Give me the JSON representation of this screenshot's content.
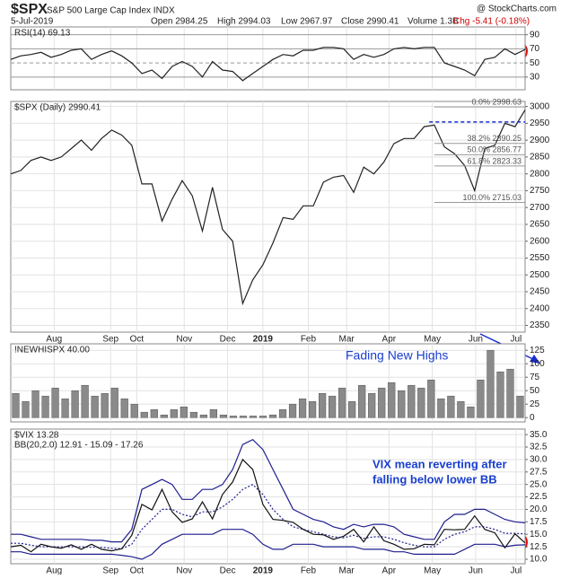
{
  "header": {
    "symbol": "$SPX",
    "name": "S&P 500 Large Cap Index INDX",
    "source": "@ StockCharts.com",
    "date": "5-Jul-2019",
    "quote": [
      "Open 2984.25",
      "High 2994.03",
      "Low 2967.97",
      "Close 2990.41",
      "Volume 1.3B",
      "Chg -5.41 (-0.18%)"
    ]
  },
  "chart_data": [
    {
      "type": "line",
      "title": "RSI(14) 69.13",
      "color": "#222222",
      "x": [
        0,
        1,
        2,
        3,
        4,
        5,
        6,
        7,
        8,
        9,
        10,
        11,
        12,
        13,
        14,
        15,
        16,
        17,
        18,
        19,
        20,
        21,
        22,
        23,
        24,
        25,
        26,
        27,
        28,
        29,
        30,
        31,
        32,
        33,
        34,
        35,
        36,
        37,
        38,
        39,
        40,
        41,
        42,
        43,
        44,
        45,
        46,
        47,
        48,
        49,
        50,
        51
      ],
      "values": [
        55,
        60,
        62,
        65,
        58,
        62,
        68,
        70,
        55,
        62,
        67,
        60,
        50,
        35,
        40,
        28,
        45,
        52,
        45,
        30,
        52,
        40,
        38,
        25,
        35,
        45,
        55,
        62,
        60,
        68,
        68,
        72,
        72,
        70,
        55,
        62,
        58,
        62,
        70,
        72,
        70,
        72,
        72,
        50,
        45,
        40,
        32,
        55,
        58,
        70,
        62,
        69.13
      ],
      "xlim": [
        0,
        51
      ],
      "ylim": [
        12,
        101
      ],
      "yticks": [
        30,
        50,
        70,
        90
      ]
    },
    {
      "type": "line",
      "title": "$SPX (Daily) 2990.41",
      "color": "#222222",
      "x": [
        0,
        1,
        2,
        3,
        4,
        5,
        6,
        7,
        8,
        9,
        10,
        11,
        12,
        13,
        14,
        15,
        16,
        17,
        18,
        19,
        20,
        21,
        22,
        23,
        24,
        25,
        26,
        27,
        28,
        29,
        30,
        31,
        32,
        33,
        34,
        35,
        36,
        37,
        38,
        39,
        40,
        41,
        42,
        43,
        44,
        45,
        46,
        47,
        48,
        49,
        50,
        51
      ],
      "values": [
        2800,
        2810,
        2840,
        2850,
        2840,
        2850,
        2875,
        2900,
        2870,
        2905,
        2930,
        2915,
        2885,
        2770,
        2770,
        2660,
        2725,
        2780,
        2735,
        2630,
        2760,
        2635,
        2600,
        2415,
        2485,
        2530,
        2595,
        2670,
        2665,
        2705,
        2705,
        2775,
        2790,
        2795,
        2745,
        2820,
        2800,
        2835,
        2890,
        2905,
        2905,
        2940,
        2945,
        2880,
        2860,
        2825,
        2750,
        2875,
        2885,
        2950,
        2940,
        2990
      ],
      "xlim": [
        0,
        51
      ],
      "ylim": [
        2330,
        3015
      ],
      "yticks": [
        2350,
        2400,
        2450,
        2500,
        2550,
        2600,
        2650,
        2700,
        2750,
        2800,
        2850,
        2900,
        2950,
        3000
      ],
      "xticks": [
        {
          "value": 4.3,
          "label": "Aug"
        },
        {
          "value": 9.9,
          "label": "Sep"
        },
        {
          "value": 12.5,
          "label": "Oct"
        },
        {
          "value": 17.2,
          "label": "Nov"
        },
        {
          "value": 21.5,
          "label": "Dec"
        },
        {
          "value": 25.0,
          "label": "2019"
        },
        {
          "value": 29.5,
          "label": "Feb"
        },
        {
          "value": 33.3,
          "label": "Mar"
        },
        {
          "value": 37.5,
          "label": "Apr"
        },
        {
          "value": 41.8,
          "label": "May"
        },
        {
          "value": 46.1,
          "label": "Jun"
        },
        {
          "value": 50.1,
          "label": "Jul"
        }
      ],
      "fib_levels": [
        {
          "value": 2998.63,
          "label": "0.0% 2998.63"
        },
        {
          "value": 2890.25,
          "label": "38.2% 2890.25"
        },
        {
          "value": 2856.77,
          "label": "50.0% 2856.77"
        },
        {
          "value": 2823.33,
          "label": "61.8% 2823.33"
        },
        {
          "value": 2715.03,
          "label": "100.0% 2715.03"
        }
      ],
      "resistance": 2954
    },
    {
      "type": "bar",
      "title": "!NEWHISPX 40.00",
      "color": "#8a8a8a",
      "x": [
        0,
        1,
        2,
        3,
        4,
        5,
        6,
        7,
        8,
        9,
        10,
        11,
        12,
        13,
        14,
        15,
        16,
        17,
        18,
        19,
        20,
        21,
        22,
        23,
        24,
        25,
        26,
        27,
        28,
        29,
        30,
        31,
        32,
        33,
        34,
        35,
        36,
        37,
        38,
        39,
        40,
        41,
        42,
        43,
        44,
        45,
        46,
        47,
        48,
        49,
        50,
        51
      ],
      "values": [
        45,
        30,
        50,
        40,
        55,
        35,
        50,
        60,
        40,
        45,
        55,
        35,
        25,
        10,
        15,
        5,
        15,
        20,
        10,
        5,
        15,
        5,
        3,
        3,
        3,
        3,
        5,
        15,
        25,
        35,
        30,
        45,
        40,
        55,
        30,
        60,
        45,
        55,
        65,
        50,
        60,
        55,
        70,
        35,
        40,
        30,
        20,
        70,
        125,
        85,
        90,
        40
      ],
      "xlim": [
        -0.5,
        51.5
      ],
      "ylim": [
        -8,
        137
      ],
      "yticks": [
        0,
        25,
        50,
        75,
        100,
        125
      ],
      "annotations": [
        "Fading New Highs"
      ]
    },
    {
      "type": "line",
      "title": "$VIX 13.28",
      "subtitle": "BB(20,2.0) 12.91 - 15.09 - 17.26",
      "color": "#111111",
      "band_color": "#1f1f8f",
      "x": [
        0,
        1,
        2,
        3,
        4,
        5,
        6,
        7,
        8,
        9,
        10,
        11,
        12,
        13,
        14,
        15,
        16,
        17,
        18,
        19,
        20,
        21,
        22,
        23,
        24,
        25,
        26,
        27,
        28,
        29,
        30,
        31,
        32,
        33,
        34,
        35,
        36,
        37,
        38,
        39,
        40,
        41,
        42,
        43,
        44,
        45,
        46,
        47,
        48,
        49,
        50,
        51
      ],
      "values": [
        12.5,
        12.8,
        11.5,
        13,
        12.5,
        12.2,
        12.9,
        12,
        13,
        12,
        11.7,
        12.1,
        14.8,
        21,
        19.9,
        24,
        19.5,
        17.4,
        18.1,
        21.5,
        18.1,
        23,
        25.5,
        30,
        28,
        21,
        18,
        17.8,
        17.4,
        16,
        15,
        14.9,
        14,
        14.6,
        16,
        13.5,
        16.5,
        13.7,
        13,
        12,
        12.1,
        13,
        12.9,
        16,
        15.9,
        16,
        18.7,
        16,
        15.3,
        12.3,
        15.1,
        13.28
      ],
      "bands": {
        "upper": [
          15,
          15,
          14.5,
          14,
          14,
          14,
          14,
          14,
          13.8,
          13.8,
          13.5,
          13.5,
          16,
          24,
          25,
          26,
          25,
          22,
          22,
          24,
          24,
          25,
          28,
          33,
          34,
          32,
          28,
          24,
          20,
          19,
          18,
          17.5,
          16.5,
          16,
          17,
          16.5,
          17,
          17,
          16.5,
          15,
          14.5,
          14,
          14,
          17.5,
          19,
          19,
          20,
          20,
          19,
          18,
          17.5,
          17.3
        ],
        "middle": [
          13.2,
          13.2,
          12.8,
          12.5,
          12.5,
          12.5,
          12.5,
          12.5,
          12.4,
          12.4,
          12.2,
          12.1,
          13,
          16,
          18,
          20,
          20,
          19,
          18.5,
          19.5,
          19.5,
          20.5,
          22,
          24,
          25,
          23,
          20,
          18,
          16.5,
          16,
          15.5,
          15,
          14.5,
          14.3,
          14.8,
          14.2,
          14.5,
          14.5,
          14,
          13.3,
          12.8,
          12.5,
          12.5,
          14,
          15,
          15.5,
          16.5,
          16.5,
          16,
          15.2,
          15.2,
          15.1
        ],
        "lower": [
          11.5,
          11.5,
          11,
          11,
          11,
          11,
          11,
          11,
          11,
          11,
          11,
          10.8,
          10.5,
          10,
          11,
          13,
          14,
          15,
          15,
          15,
          15,
          16,
          16,
          16,
          15,
          13,
          12,
          12,
          13,
          13,
          13,
          12.5,
          12.5,
          12.5,
          12.5,
          12,
          12,
          12,
          11.5,
          11.5,
          11,
          11,
          11,
          11,
          11,
          12,
          13,
          13,
          13,
          12.5,
          12.8,
          12.9
        ]
      },
      "xlim": [
        0,
        51
      ],
      "ylim": [
        9.1,
        36.1
      ],
      "yticks": [
        {
          "value": 10,
          "label": "10.0"
        },
        {
          "value": 12.5,
          "label": "12.5"
        },
        {
          "value": 15,
          "label": "15.0"
        },
        {
          "value": 17.5,
          "label": "17.5"
        },
        {
          "value": 20,
          "label": "20.0"
        },
        {
          "value": 22.5,
          "label": "22.5"
        },
        {
          "value": 25,
          "label": "25.0"
        },
        {
          "value": 27.5,
          "label": "27.5"
        },
        {
          "value": 30,
          "label": "30.0"
        },
        {
          "value": 32.5,
          "label": "32.5"
        },
        {
          "value": 35,
          "label": "35.0"
        }
      ],
      "xticks": [
        {
          "value": 4.3,
          "label": "Aug"
        },
        {
          "value": 9.9,
          "label": "Sep"
        },
        {
          "value": 12.5,
          "label": "Oct"
        },
        {
          "value": 17.2,
          "label": "Nov"
        },
        {
          "value": 21.5,
          "label": "Dec"
        },
        {
          "value": 25.0,
          "label": "2019"
        },
        {
          "value": 29.5,
          "label": "Feb"
        },
        {
          "value": 33.3,
          "label": "Mar"
        },
        {
          "value": 37.5,
          "label": "Apr"
        },
        {
          "value": 41.8,
          "label": "May"
        },
        {
          "value": 46.1,
          "label": "Jun"
        },
        {
          "value": 50.1,
          "label": "Jul"
        }
      ],
      "annotations": [
        "VIX mean reverting after",
        "falling below lower BB"
      ]
    }
  ]
}
